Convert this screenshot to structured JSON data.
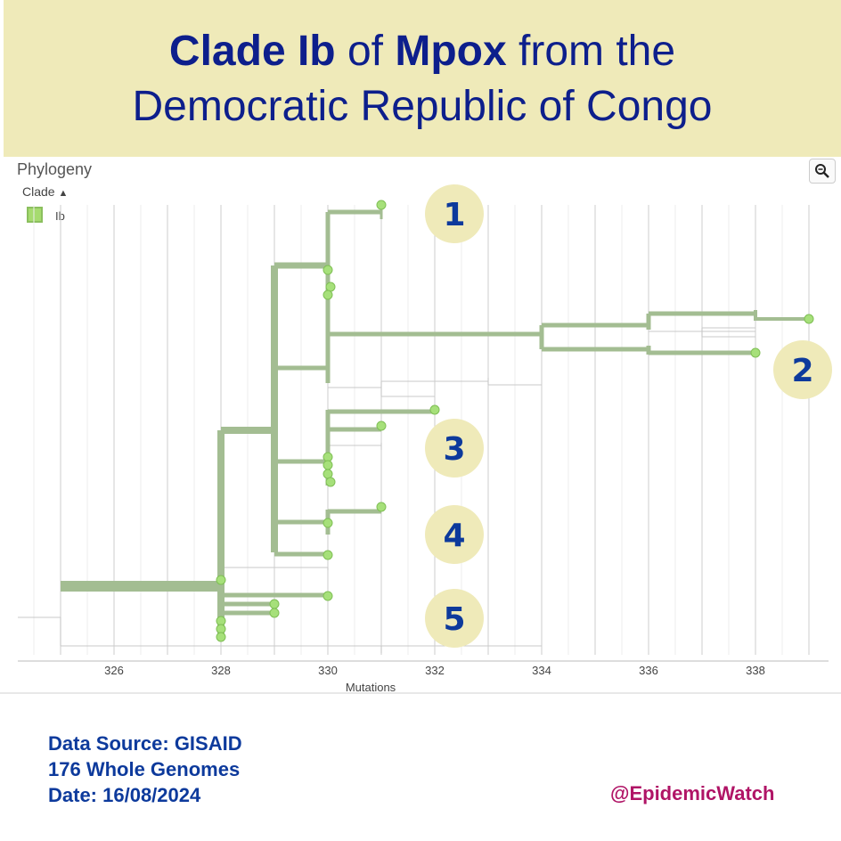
{
  "header": {
    "title_line1_bold1": "Clade Ib",
    "title_line1_mid": " of ",
    "title_line1_bold2": "Mpox",
    "title_line1_end": " from the",
    "title_line2": "Democratic Republic of Congo"
  },
  "panel": {
    "label": "Phylogeny",
    "legend_title": "Clade",
    "legend_chevron": "▲",
    "legend_item": "Ib",
    "zoom_icon": "magnifier-icon"
  },
  "colors": {
    "banner": "#efeab9",
    "title": "#0d1f8c",
    "branch": "#a3bd92",
    "tip": "#a6e07a",
    "badge": "#efeab9",
    "footer": "#0d3a9c",
    "handle": "#b01466"
  },
  "chart_data": {
    "type": "phylogenetic-tree",
    "xlabel": "Mutations",
    "xlim": [
      324.2,
      340
    ],
    "x_ticks": [
      326,
      328,
      330,
      332,
      334,
      336,
      338
    ],
    "annotations": [
      "1",
      "2",
      "3",
      "4",
      "5"
    ],
    "tip_mutations": [
      331,
      330,
      330,
      330,
      339,
      338,
      332,
      331,
      330,
      330,
      330,
      330,
      331,
      330,
      330,
      328,
      330,
      329,
      329,
      328,
      328,
      328
    ]
  },
  "footer": {
    "source": "Data Source: GISAID",
    "genomes": "176 Whole Genomes",
    "date": "Date: 16/08/2024",
    "handle": "@EpidemicWatch"
  }
}
